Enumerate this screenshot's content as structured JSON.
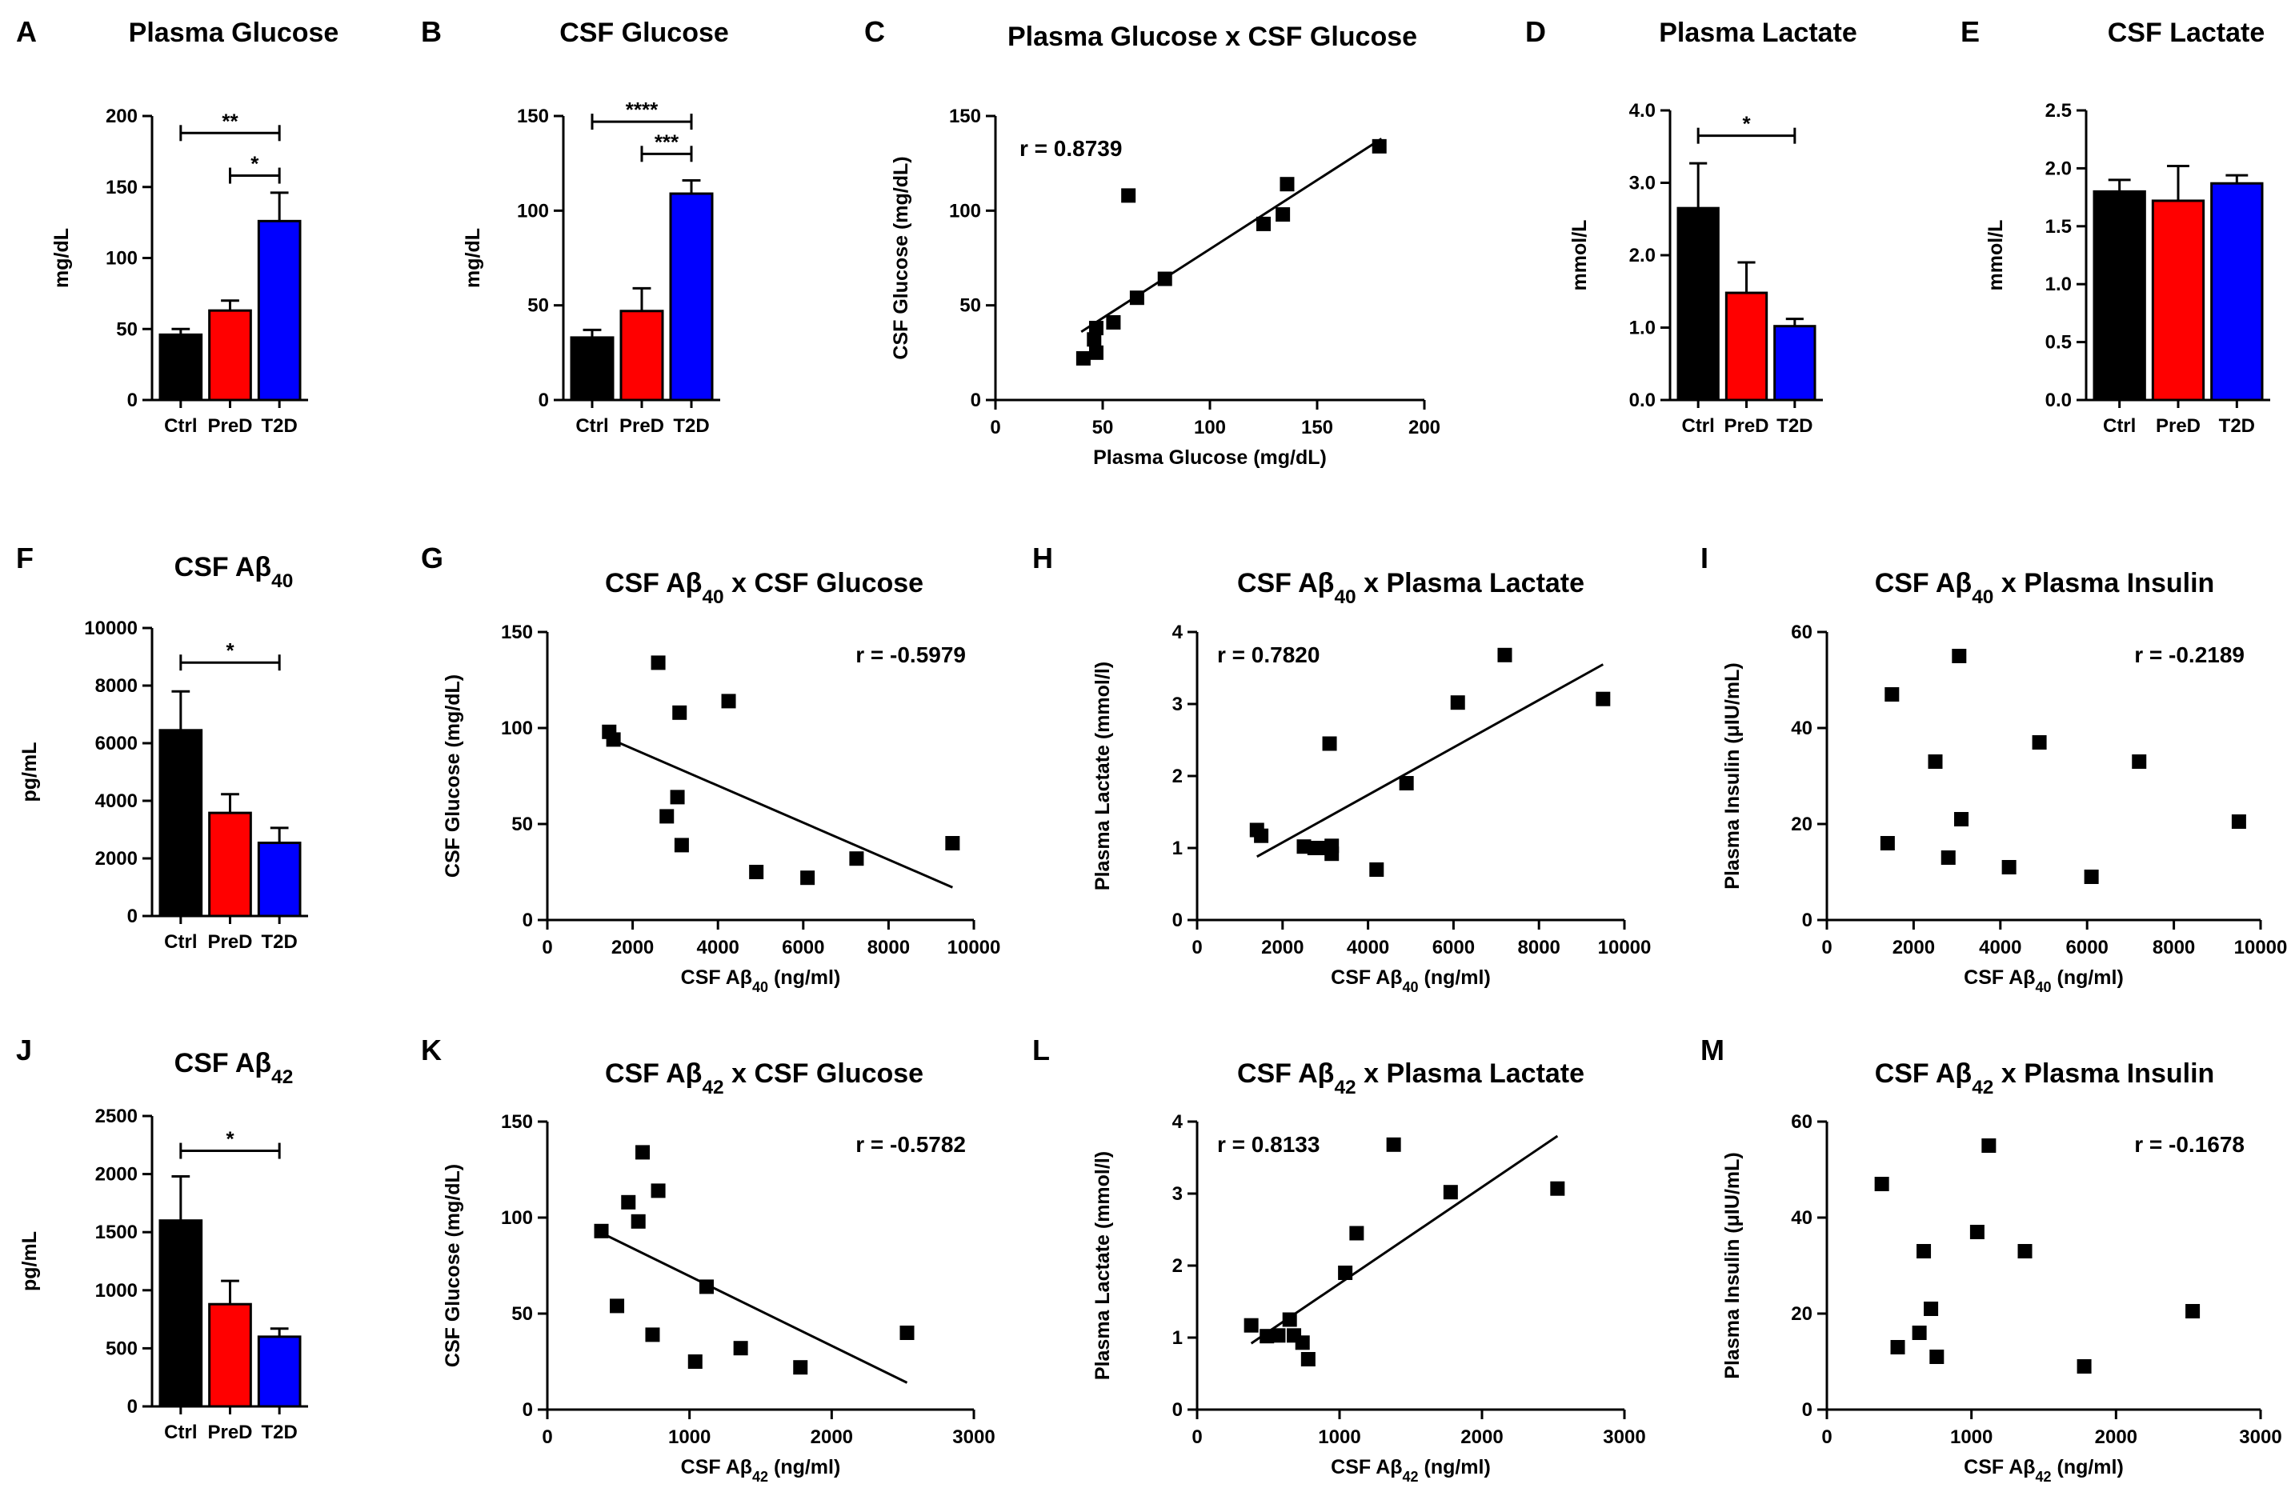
{
  "colors": {
    "Ctrl": "#000000",
    "PreD": "#ff0000",
    "T2D": "#0000ff"
  },
  "chart_data": [
    {
      "id": "A",
      "type": "bar",
      "label": "A",
      "title": "Plasma Glucose",
      "ylabel": "mg/dL",
      "ylim": [
        0,
        200
      ],
      "yticks": [
        "0",
        "50",
        "100",
        "150",
        "200"
      ],
      "categories": [
        "Ctrl",
        "PreD",
        "T2D"
      ],
      "values": [
        46,
        63,
        126
      ],
      "errors": [
        4,
        7,
        20
      ],
      "significance": [
        {
          "from": 0,
          "to": 2,
          "text": "**",
          "y": 188
        },
        {
          "from": 1,
          "to": 2,
          "text": "*",
          "y": 158
        }
      ]
    },
    {
      "id": "B",
      "type": "bar",
      "label": "B",
      "title": "CSF Glucose",
      "ylabel": "mg/dL",
      "ylim": [
        0,
        150
      ],
      "yticks": [
        "0",
        "50",
        "100",
        "150"
      ],
      "categories": [
        "Ctrl",
        "PreD",
        "T2D"
      ],
      "values": [
        33,
        47,
        109
      ],
      "errors": [
        4,
        12,
        7
      ],
      "significance": [
        {
          "from": 0,
          "to": 2,
          "text": "****",
          "y": 147
        },
        {
          "from": 1,
          "to": 2,
          "text": "***",
          "y": 130
        }
      ]
    },
    {
      "id": "C",
      "type": "scatter",
      "label": "C",
      "title": "Plasma Glucose x CSF Glucose",
      "xlabel": "Plasma Glucose (mg/dL)",
      "ylabel": "CSF Glucose (mg/dL)",
      "r": "r = 0.8739",
      "xlim": [
        0,
        200
      ],
      "ylim": [
        0,
        150
      ],
      "xticks": [
        "0",
        "50",
        "100",
        "150",
        "200"
      ],
      "yticks": [
        "0",
        "50",
        "100",
        "150"
      ],
      "points": [
        [
          41,
          22
        ],
        [
          46,
          32
        ],
        [
          47,
          25
        ],
        [
          47,
          38
        ],
        [
          55,
          41
        ],
        [
          62,
          108
        ],
        [
          66,
          54
        ],
        [
          79,
          64
        ],
        [
          125,
          93
        ],
        [
          134,
          98
        ],
        [
          136,
          114
        ],
        [
          179,
          134
        ]
      ],
      "fit": [
        [
          40,
          36
        ],
        [
          180,
          138
        ]
      ]
    },
    {
      "id": "D",
      "type": "bar",
      "label": "D",
      "title": "Plasma Lactate",
      "ylabel": "mmol/L",
      "ylim": [
        0,
        4
      ],
      "yticks": [
        "0.0",
        "1.0",
        "2.0",
        "3.0",
        "4.0"
      ],
      "categories": [
        "Ctrl",
        "PreD",
        "T2D"
      ],
      "values": [
        2.65,
        1.48,
        1.02
      ],
      "errors": [
        0.62,
        0.42,
        0.1
      ],
      "significance": [
        {
          "from": 0,
          "to": 2,
          "text": "*",
          "y": 3.65
        }
      ]
    },
    {
      "id": "E",
      "type": "bar",
      "label": "E",
      "title": "CSF Lactate",
      "ylabel": "mmol/L",
      "ylim": [
        0,
        2.5
      ],
      "yticks": [
        "0.0",
        "0.5",
        "1.0",
        "1.5",
        "2.0",
        "2.5"
      ],
      "categories": [
        "Ctrl",
        "PreD",
        "T2D"
      ],
      "values": [
        1.8,
        1.72,
        1.87
      ],
      "errors": [
        0.1,
        0.3,
        0.07
      ],
      "significance": []
    },
    {
      "id": "F",
      "type": "bar",
      "label": "F",
      "title": "CSF Aβ",
      "title_sub": "40",
      "ylabel": "pg/mL",
      "ylim": [
        0,
        10000
      ],
      "yticks": [
        "0",
        "2000",
        "4000",
        "6000",
        "8000",
        "10000"
      ],
      "categories": [
        "Ctrl",
        "PreD",
        "T2D"
      ],
      "values": [
        6450,
        3580,
        2540
      ],
      "errors": [
        1350,
        650,
        520
      ],
      "significance": [
        {
          "from": 0,
          "to": 2,
          "text": "*",
          "y": 8800
        }
      ]
    },
    {
      "id": "G",
      "type": "scatter",
      "label": "G",
      "title": "CSF Aβ",
      "title_sub": "40",
      "title_rest": " x CSF Glucose",
      "xlabel": "CSF Aβ",
      "xlabel_sub": "40",
      "xlabel_rest": " (ng/ml)",
      "ylabel": "CSF Glucose (mg/dL)",
      "r": "r = -0.5979",
      "xlim": [
        0,
        10000
      ],
      "ylim": [
        0,
        150
      ],
      "xticks": [
        "0",
        "2000",
        "4000",
        "6000",
        "8000",
        "10000"
      ],
      "yticks": [
        "0",
        "50",
        "100",
        "150"
      ],
      "points": [
        [
          1450,
          98
        ],
        [
          1550,
          94
        ],
        [
          2600,
          134
        ],
        [
          2800,
          54
        ],
        [
          3050,
          64
        ],
        [
          3100,
          108
        ],
        [
          3150,
          39
        ],
        [
          4250,
          114
        ],
        [
          4900,
          25
        ],
        [
          6100,
          22
        ],
        [
          7250,
          32
        ],
        [
          9500,
          40
        ]
      ],
      "fit": [
        [
          1400,
          95
        ],
        [
          9500,
          17
        ]
      ]
    },
    {
      "id": "H",
      "type": "scatter",
      "label": "H",
      "title": "CSF Aβ",
      "title_sub": "40",
      "title_rest": " x Plasma Lactate",
      "xlabel": "CSF Aβ",
      "xlabel_sub": "40",
      "xlabel_rest": " (ng/ml)",
      "ylabel": "Plasma Lactate (mmol/l)",
      "r": "r = 0.7820",
      "xlim": [
        0,
        10000
      ],
      "ylim": [
        0,
        4
      ],
      "xticks": [
        "0",
        "2000",
        "4000",
        "6000",
        "8000",
        "10000"
      ],
      "yticks": [
        "0",
        "1",
        "2",
        "3",
        "4"
      ],
      "points": [
        [
          1400,
          1.25
        ],
        [
          1500,
          1.17
        ],
        [
          2500,
          1.02
        ],
        [
          2750,
          1.0
        ],
        [
          3000,
          1.0
        ],
        [
          3100,
          2.45
        ],
        [
          3150,
          0.92
        ],
        [
          3150,
          1.03
        ],
        [
          4200,
          0.7
        ],
        [
          4900,
          1.9
        ],
        [
          6100,
          3.02
        ],
        [
          7200,
          3.68
        ],
        [
          9500,
          3.07
        ]
      ],
      "fit": [
        [
          1400,
          0.88
        ],
        [
          9500,
          3.55
        ]
      ]
    },
    {
      "id": "I",
      "type": "scatter",
      "label": "I",
      "title": "CSF Aβ",
      "title_sub": "40",
      "title_rest": " x Plasma Insulin",
      "xlabel": "CSF Aβ",
      "xlabel_sub": "40",
      "xlabel_rest": " (ng/ml)",
      "ylabel": "Plasma Insulin (μIU/mL)",
      "r": "r = -0.2189",
      "xlim": [
        0,
        10000
      ],
      "ylim": [
        0,
        60
      ],
      "xticks": [
        "0",
        "2000",
        "4000",
        "6000",
        "8000",
        "10000"
      ],
      "yticks": [
        "0",
        "20",
        "40",
        "60"
      ],
      "points": [
        [
          1400,
          16
        ],
        [
          1500,
          47
        ],
        [
          2500,
          33
        ],
        [
          2800,
          13
        ],
        [
          3050,
          55
        ],
        [
          3100,
          21
        ],
        [
          4200,
          11
        ],
        [
          4900,
          37
        ],
        [
          6100,
          9
        ],
        [
          7200,
          33
        ],
        [
          9500,
          20.5
        ]
      ],
      "fit": null
    },
    {
      "id": "J",
      "type": "bar",
      "label": "J",
      "title": "CSF Aβ",
      "title_sub": "42",
      "ylabel": "pg/mL",
      "ylim": [
        0,
        2500
      ],
      "yticks": [
        "0",
        "500",
        "1000",
        "1500",
        "2000",
        "2500"
      ],
      "categories": [
        "Ctrl",
        "PreD",
        "T2D"
      ],
      "values": [
        1600,
        880,
        600
      ],
      "errors": [
        380,
        200,
        70
      ],
      "significance": [
        {
          "from": 0,
          "to": 2,
          "text": "*",
          "y": 2200
        }
      ]
    },
    {
      "id": "K",
      "type": "scatter",
      "label": "K",
      "title": "CSF Aβ",
      "title_sub": "42",
      "title_rest": " x CSF Glucose",
      "xlabel": "CSF Aβ",
      "xlabel_sub": "42",
      "xlabel_rest": " (ng/ml)",
      "ylabel": "CSF Glucose (mg/dL)",
      "r": "r = -0.5782",
      "xlim": [
        0,
        3000
      ],
      "ylim": [
        0,
        150
      ],
      "xticks": [
        "0",
        "1000",
        "2000",
        "3000"
      ],
      "yticks": [
        "0",
        "50",
        "100",
        "150"
      ],
      "points": [
        [
          380,
          93
        ],
        [
          490,
          54
        ],
        [
          570,
          108
        ],
        [
          640,
          98
        ],
        [
          670,
          134
        ],
        [
          740,
          39
        ],
        [
          780,
          114
        ],
        [
          1040,
          25
        ],
        [
          1120,
          64
        ],
        [
          1360,
          32
        ],
        [
          1780,
          22
        ],
        [
          2530,
          40
        ]
      ],
      "fit": [
        [
          380,
          92
        ],
        [
          2530,
          14
        ]
      ]
    },
    {
      "id": "L",
      "type": "scatter",
      "label": "L",
      "title": "CSF Aβ",
      "title_sub": "42",
      "title_rest": " x Plasma Lactate",
      "xlabel": "CSF Aβ",
      "xlabel_sub": "42",
      "xlabel_rest": " (ng/ml)",
      "ylabel": "Plasma Lactate (mmol/l)",
      "r": "r = 0.8133",
      "xlim": [
        0,
        3000
      ],
      "ylim": [
        0,
        4
      ],
      "xticks": [
        "0",
        "1000",
        "2000",
        "3000"
      ],
      "yticks": [
        "0",
        "1",
        "2",
        "3",
        "4"
      ],
      "points": [
        [
          380,
          1.17
        ],
        [
          490,
          1.02
        ],
        [
          570,
          1.03
        ],
        [
          650,
          1.25
        ],
        [
          680,
          1.03
        ],
        [
          740,
          0.93
        ],
        [
          780,
          0.7
        ],
        [
          1040,
          1.9
        ],
        [
          1120,
          2.45
        ],
        [
          1380,
          3.68
        ],
        [
          1780,
          3.02
        ],
        [
          2530,
          3.07
        ]
      ],
      "fit": [
        [
          380,
          0.92
        ],
        [
          2530,
          3.8
        ]
      ]
    },
    {
      "id": "M",
      "type": "scatter",
      "label": "M",
      "title": "CSF Aβ",
      "title_sub": "42",
      "title_rest": " x Plasma Insulin",
      "xlabel": "CSF Aβ",
      "xlabel_sub": "42",
      "xlabel_rest": " (ng/ml)",
      "ylabel": "Plasma Insulin (μIU/mL)",
      "r": "r = -0.1678",
      "xlim": [
        0,
        3000
      ],
      "ylim": [
        0,
        60
      ],
      "xticks": [
        "0",
        "1000",
        "2000",
        "3000"
      ],
      "yticks": [
        "0",
        "20",
        "40",
        "60"
      ],
      "points": [
        [
          380,
          47
        ],
        [
          490,
          13
        ],
        [
          640,
          16
        ],
        [
          670,
          33
        ],
        [
          720,
          21
        ],
        [
          760,
          11
        ],
        [
          1040,
          37
        ],
        [
          1120,
          55
        ],
        [
          1370,
          33
        ],
        [
          1780,
          9
        ],
        [
          2530,
          20.5
        ]
      ],
      "fit": null
    }
  ]
}
